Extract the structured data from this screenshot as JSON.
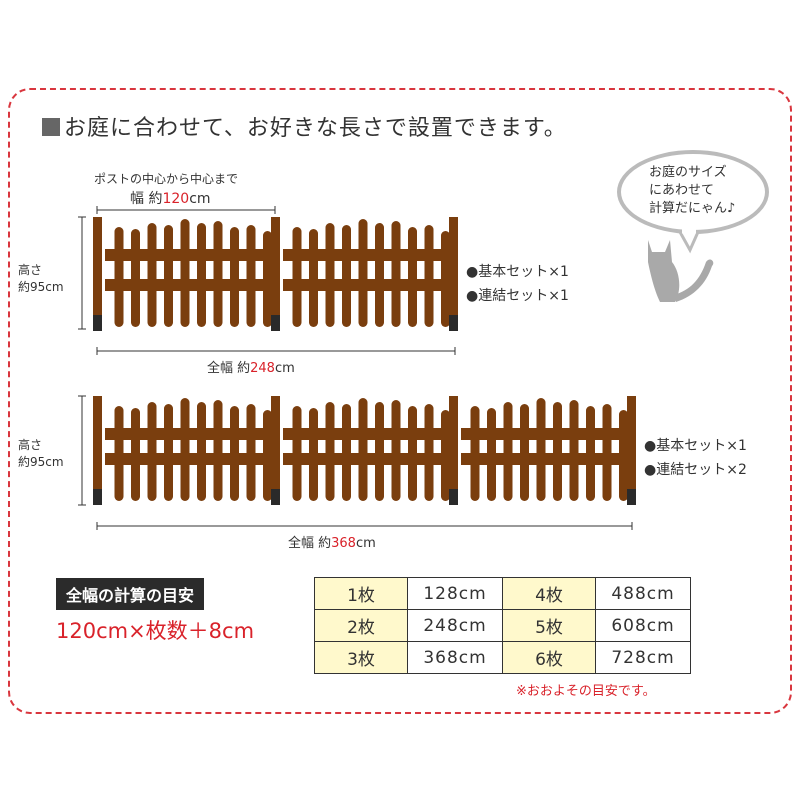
{
  "title": "お庭に合わせて、お好きな長さで設置できます。",
  "bubble": [
    "お庭のサイズ",
    "にあわせて",
    "計算だにゃん♪"
  ],
  "fence1": {
    "post_note": "ポストの中心から中心まで",
    "width_prefix": "幅 約",
    "width_value": "120",
    "width_unit": "cm",
    "height_label": "高さ",
    "height_value": "約95cm",
    "total_prefix": "全幅 約",
    "total_value": "248",
    "total_unit": "cm",
    "sets": [
      "●基本セット×1",
      "●連結セット×1"
    ],
    "panels": 2
  },
  "fence2": {
    "height_label": "高さ",
    "height_value": "約95cm",
    "total_prefix": "全幅 約",
    "total_value": "368",
    "total_unit": "cm",
    "sets": [
      "●基本セット×1",
      "●連結セット×2"
    ],
    "panels": 3
  },
  "calc": {
    "label": "全幅の計算の目安",
    "formula": "120cm×枚数＋8cm",
    "rows": [
      [
        "1枚",
        "128cm",
        "4枚",
        "488cm"
      ],
      [
        "2枚",
        "248cm",
        "5枚",
        "608cm"
      ],
      [
        "3枚",
        "368cm",
        "6枚",
        "728cm"
      ]
    ],
    "note": "※おおよその目安です。"
  },
  "colors": {
    "accent": "#d9222a",
    "fence": "#7a3e0e",
    "post_base": "#2a2a2a",
    "table_key": "#fff9cc"
  }
}
